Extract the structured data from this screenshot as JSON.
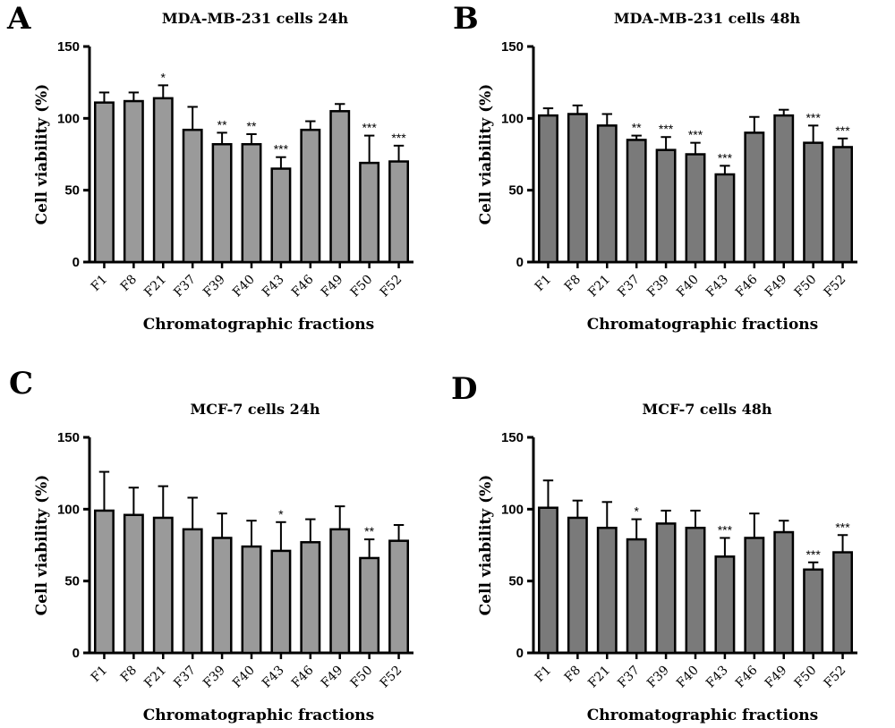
{
  "chart_data": [
    {
      "panel": "A",
      "type": "bar",
      "title": "MDA-MB-231 cells 24h",
      "xlabel": "Chromatographic fractions",
      "ylabel": "Cell viability (%)",
      "ylim": [
        0,
        150
      ],
      "yticks": [
        "0",
        "50",
        "100",
        "150"
      ],
      "bar_color": "#9a9a9a",
      "categories": [
        "F1",
        "F8",
        "F21",
        "F37",
        "F39",
        "F40",
        "F43",
        "F46",
        "F49",
        "F50",
        "F52"
      ],
      "values": [
        111,
        112,
        114,
        92,
        82,
        82,
        65,
        92,
        105,
        69,
        70
      ],
      "errors": [
        7,
        6,
        9,
        16,
        8,
        7,
        8,
        6,
        5,
        19,
        11
      ],
      "significance": [
        "",
        "",
        "*",
        "",
        "**",
        "**",
        "***",
        "",
        "",
        "***",
        "***"
      ]
    },
    {
      "panel": "B",
      "type": "bar",
      "title": "MDA-MB-231 cells 48h",
      "xlabel": "Chromatographic fractions",
      "ylabel": "Cell viability (%)",
      "ylim": [
        0,
        150
      ],
      "yticks": [
        "0",
        "50",
        "100",
        "150"
      ],
      "bar_color": "#7a7a7a",
      "categories": [
        "F1",
        "F8",
        "F21",
        "F37",
        "F39",
        "F40",
        "F43",
        "F46",
        "F49",
        "F50",
        "F52"
      ],
      "values": [
        102,
        103,
        95,
        85,
        78,
        75,
        61,
        90,
        102,
        83,
        80
      ],
      "errors": [
        5,
        6,
        8,
        3,
        9,
        8,
        6,
        11,
        4,
        12,
        6
      ],
      "significance": [
        "",
        "",
        "",
        "**",
        "***",
        "***",
        "***",
        "",
        "",
        "***",
        "***"
      ]
    },
    {
      "panel": "C",
      "type": "bar",
      "title": "MCF-7 cells 24h",
      "xlabel": "Chromatographic fractions",
      "ylabel": "Cell viability (%)",
      "ylim": [
        0,
        150
      ],
      "yticks": [
        "0",
        "50",
        "100",
        "150"
      ],
      "bar_color": "#9a9a9a",
      "categories": [
        "F1",
        "F8",
        "F21",
        "F37",
        "F39",
        "F40",
        "F43",
        "F46",
        "F49",
        "F50",
        "F52"
      ],
      "values": [
        99,
        96,
        94,
        86,
        80,
        74,
        71,
        77,
        86,
        66,
        78
      ],
      "errors": [
        27,
        19,
        22,
        22,
        17,
        18,
        20,
        16,
        16,
        13,
        11
      ],
      "significance": [
        "",
        "",
        "",
        "",
        "",
        "",
        "*",
        "",
        "",
        "**",
        ""
      ]
    },
    {
      "panel": "D",
      "type": "bar",
      "title": "MCF-7 cells 48h",
      "xlabel": "Chromatographic fractions",
      "ylabel": "Cell viability (%)",
      "ylim": [
        0,
        150
      ],
      "yticks": [
        "0",
        "50",
        "100",
        "150"
      ],
      "bar_color": "#7a7a7a",
      "categories": [
        "F1",
        "F8",
        "F21",
        "F37",
        "F39",
        "F40",
        "F43",
        "F46",
        "F49",
        "F50",
        "F52"
      ],
      "values": [
        101,
        94,
        87,
        79,
        90,
        87,
        67,
        80,
        84,
        58,
        70
      ],
      "errors": [
        19,
        12,
        18,
        14,
        9,
        12,
        13,
        17,
        8,
        5,
        12
      ],
      "significance": [
        "",
        "",
        "",
        "*",
        "",
        "",
        "***",
        "",
        "",
        "***",
        "***"
      ]
    }
  ]
}
